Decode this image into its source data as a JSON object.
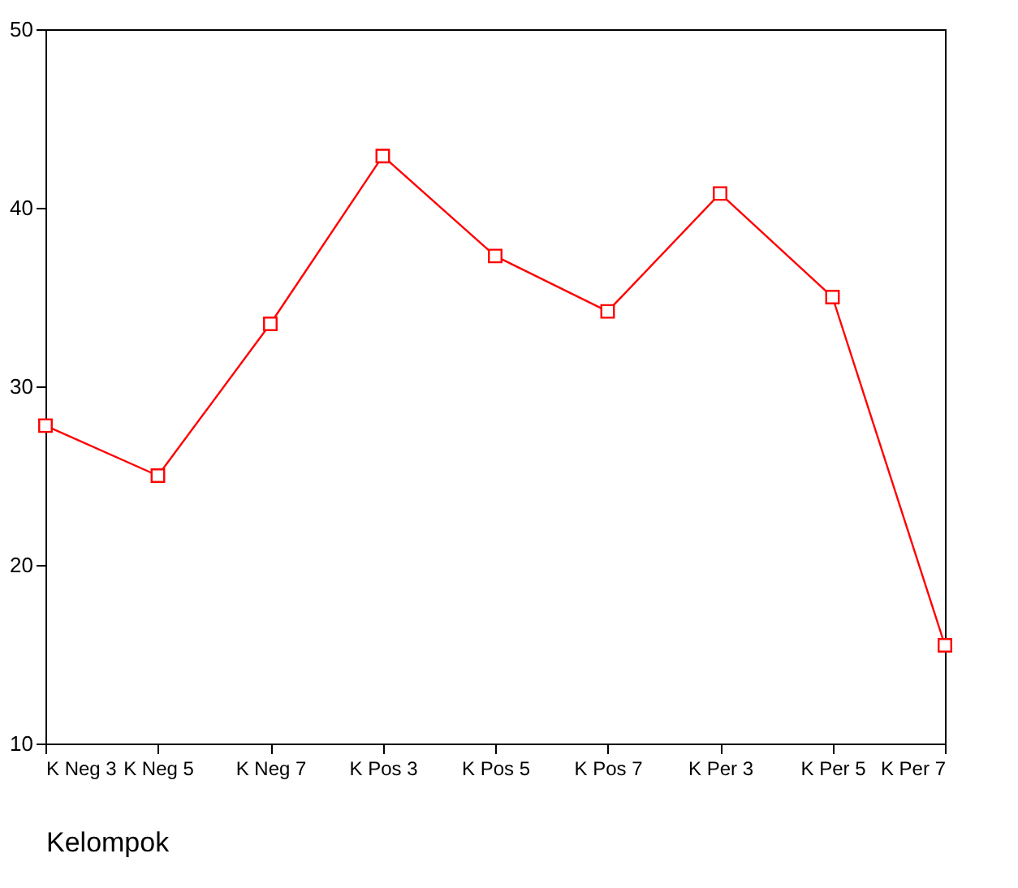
{
  "chart_data": {
    "type": "line",
    "xlabel": "Kelompok",
    "categories": [
      "K Neg 3",
      "K Neg 5",
      "K Neg 7",
      "K Pos 3",
      "K Pos 5",
      "K Pos 7",
      "K Per 3",
      "K Per 5",
      "K Per 7"
    ],
    "series": [
      {
        "color": "#ff0000",
        "values": [
          27.8,
          25.0,
          33.5,
          42.9,
          37.3,
          34.2,
          40.8,
          35.0,
          15.5
        ]
      }
    ],
    "ylim": [
      10,
      50
    ],
    "yticks": [
      10,
      20,
      30,
      40,
      50
    ],
    "grid": false,
    "legend": false,
    "marker": "square",
    "line_style": "solid"
  }
}
